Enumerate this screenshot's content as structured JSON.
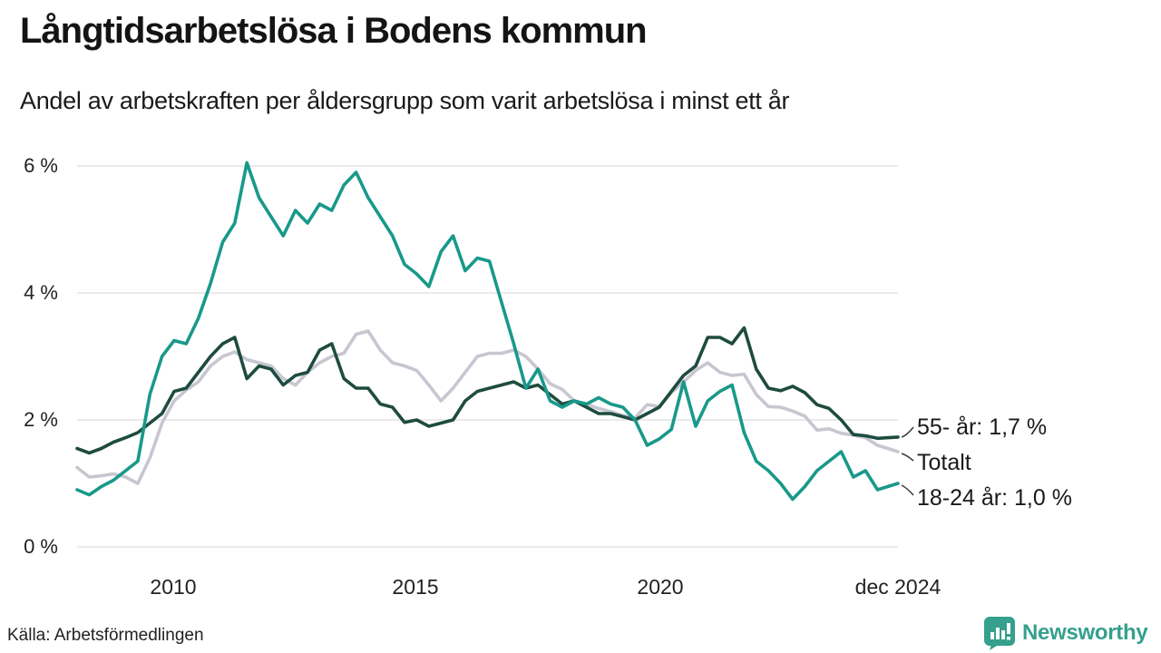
{
  "header": {
    "title": "Långtidsarbetslösa i Bodens kommun",
    "subtitle": "Andel av arbetskraften per åldersgrupp som varit arbetslösa i minst ett år"
  },
  "footer": {
    "source": "Källa: Arbetsförmedlingen",
    "brand_name": "Newsworthy",
    "brand_icon": "bar-chart-speech-bubble-icon",
    "brand_color": "#35a08d"
  },
  "chart_data": {
    "type": "line",
    "title": "Långtidsarbetslösa i Bodens kommun",
    "subtitle": "Andel av arbetskraften per åldersgrupp som varit arbetslösa i minst ett år",
    "unit": "%",
    "x_start_year": 2008,
    "x_step_years": 0.25,
    "x_end": "dec 2024",
    "ylim": [
      0,
      6.4
    ],
    "grid": "horizontal",
    "y_ticks": [
      {
        "value": 0,
        "label": "0 %"
      },
      {
        "value": 2,
        "label": "2 %"
      },
      {
        "value": 4,
        "label": "4 %"
      },
      {
        "value": 6,
        "label": "6 %"
      }
    ],
    "x_ticks": [
      {
        "value": 2010,
        "label": "2010"
      },
      {
        "value": 2015,
        "label": "2015"
      },
      {
        "value": 2020,
        "label": "2020"
      },
      {
        "value": 2024.92,
        "label": "dec 2024"
      }
    ],
    "annotations": [
      {
        "text": "55- år: 1,7 %",
        "series": "55- år"
      },
      {
        "text": "Totalt",
        "series": "Totalt"
      },
      {
        "text": "18-24 år: 1,0 %",
        "series": "18-24 år"
      }
    ],
    "series": [
      {
        "name": "Totalt",
        "color": "#c7c6d1",
        "end_value_pct": 1.5,
        "values": [
          1.25,
          1.1,
          1.12,
          1.15,
          1.1,
          1.0,
          1.4,
          1.95,
          2.3,
          2.47,
          2.6,
          2.85,
          3.0,
          3.07,
          2.95,
          2.9,
          2.85,
          2.65,
          2.55,
          2.75,
          2.9,
          3.0,
          3.05,
          3.35,
          3.4,
          3.1,
          2.9,
          2.85,
          2.78,
          2.55,
          2.3,
          2.5,
          2.75,
          3.0,
          3.05,
          3.05,
          3.1,
          3.0,
          2.8,
          2.57,
          2.48,
          2.3,
          2.25,
          2.18,
          2.13,
          2.07,
          2.03,
          2.24,
          2.21,
          2.43,
          2.6,
          2.78,
          2.9,
          2.75,
          2.7,
          2.72,
          2.4,
          2.21,
          2.2,
          2.14,
          2.06,
          1.84,
          1.86,
          1.79,
          1.76,
          1.72,
          1.6,
          1.5
        ]
      },
      {
        "name": "55- år",
        "color": "#1e4c3f",
        "end_value_pct": 1.7,
        "values": [
          1.55,
          1.48,
          1.55,
          1.65,
          1.72,
          1.8,
          1.95,
          2.1,
          2.45,
          2.5,
          2.75,
          3.0,
          3.2,
          3.3,
          2.65,
          2.85,
          2.8,
          2.55,
          2.7,
          2.75,
          3.1,
          3.2,
          2.65,
          2.5,
          2.5,
          2.25,
          2.2,
          1.96,
          2.0,
          1.9,
          1.95,
          2.0,
          2.3,
          2.45,
          2.5,
          2.55,
          2.6,
          2.5,
          2.55,
          2.4,
          2.25,
          2.3,
          2.2,
          2.1,
          2.1,
          2.05,
          2.0,
          2.1,
          2.2,
          2.45,
          2.7,
          2.85,
          3.3,
          3.3,
          3.2,
          3.45,
          2.8,
          2.5,
          2.46,
          2.53,
          2.43,
          2.24,
          2.18,
          2.0,
          1.77,
          1.75,
          1.71,
          1.73
        ]
      },
      {
        "name": "18-24 år",
        "color": "#18998a",
        "end_value_pct": 1.0,
        "values": [
          0.9,
          0.82,
          0.95,
          1.05,
          1.2,
          1.35,
          2.4,
          3.0,
          3.25,
          3.2,
          3.6,
          4.15,
          4.8,
          5.1,
          6.05,
          5.5,
          5.2,
          4.9,
          5.3,
          5.1,
          5.4,
          5.3,
          5.7,
          5.9,
          5.5,
          5.2,
          4.9,
          4.45,
          4.3,
          4.1,
          4.65,
          4.9,
          4.35,
          4.55,
          4.5,
          3.85,
          3.2,
          2.5,
          2.8,
          2.3,
          2.2,
          2.3,
          2.25,
          2.35,
          2.25,
          2.2,
          2.0,
          1.6,
          1.7,
          1.85,
          2.6,
          1.9,
          2.3,
          2.45,
          2.55,
          1.8,
          1.35,
          1.2,
          1.0,
          0.75,
          0.95,
          1.2,
          1.35,
          1.5,
          1.1,
          1.2,
          0.9,
          1.0
        ]
      }
    ]
  }
}
